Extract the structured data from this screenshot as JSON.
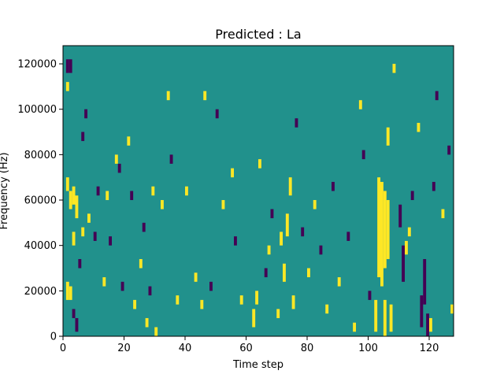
{
  "chart_data": {
    "type": "heatmap",
    "title": "Predicted : La",
    "xlabel": "Time step",
    "ylabel": "Frequency (Hz)",
    "xlim": [
      0,
      128
    ],
    "ylim": [
      0,
      128000
    ],
    "x_ticks": [
      0,
      20,
      40,
      60,
      80,
      100,
      120
    ],
    "y_ticks": [
      0,
      20000,
      40000,
      60000,
      80000,
      100000,
      120000
    ],
    "x_tick_labels": [
      "0",
      "20",
      "40",
      "60",
      "80",
      "100",
      "120"
    ],
    "y_tick_labels": [
      "0",
      "20000",
      "40000",
      "60000",
      "80000",
      "100000",
      "120000"
    ],
    "grid": false,
    "colormap": "viridis",
    "levels": [
      -1,
      0,
      1
    ],
    "level_colors": {
      "-1": "#440154",
      "0": "#21918c",
      "1": "#fde725"
    },
    "background_level": 0,
    "n_time_steps": 128,
    "n_freq_bins": 128,
    "cells": [
      {
        "t": 1,
        "f0": 116000,
        "f1": 122000,
        "v": -1
      },
      {
        "t": 2,
        "f0": 116000,
        "f1": 122000,
        "v": -1
      },
      {
        "t": 1,
        "f0": 108000,
        "f1": 112000,
        "v": 1
      },
      {
        "t": 1,
        "f0": 64000,
        "f1": 70000,
        "v": 1
      },
      {
        "t": 2,
        "f0": 56000,
        "f1": 64000,
        "v": 1
      },
      {
        "t": 3,
        "f0": 58000,
        "f1": 66000,
        "v": 1
      },
      {
        "t": 4,
        "f0": 52000,
        "f1": 62000,
        "v": 1
      },
      {
        "t": 3,
        "f0": 40000,
        "f1": 46000,
        "v": 1
      },
      {
        "t": 1,
        "f0": 16000,
        "f1": 24000,
        "v": 1
      },
      {
        "t": 2,
        "f0": 16000,
        "f1": 22000,
        "v": 1
      },
      {
        "t": 3,
        "f0": 8000,
        "f1": 12000,
        "v": -1
      },
      {
        "t": 4,
        "f0": 2000,
        "f1": 8000,
        "v": -1
      },
      {
        "t": 5,
        "f0": 30000,
        "f1": 34000,
        "v": -1
      },
      {
        "t": 6,
        "f0": 44000,
        "f1": 48000,
        "v": 1
      },
      {
        "t": 6,
        "f0": 86000,
        "f1": 90000,
        "v": -1
      },
      {
        "t": 7,
        "f0": 96000,
        "f1": 100000,
        "v": -1
      },
      {
        "t": 8,
        "f0": 50000,
        "f1": 54000,
        "v": 1
      },
      {
        "t": 10,
        "f0": 42000,
        "f1": 46000,
        "v": -1
      },
      {
        "t": 11,
        "f0": 62000,
        "f1": 66000,
        "v": -1
      },
      {
        "t": 13,
        "f0": 22000,
        "f1": 26000,
        "v": 1
      },
      {
        "t": 14,
        "f0": 60000,
        "f1": 64000,
        "v": 1
      },
      {
        "t": 15,
        "f0": 40000,
        "f1": 44000,
        "v": -1
      },
      {
        "t": 17,
        "f0": 76000,
        "f1": 80000,
        "v": 1
      },
      {
        "t": 18,
        "f0": 72000,
        "f1": 76000,
        "v": -1
      },
      {
        "t": 19,
        "f0": 20000,
        "f1": 24000,
        "v": -1
      },
      {
        "t": 21,
        "f0": 84000,
        "f1": 88000,
        "v": 1
      },
      {
        "t": 22,
        "f0": 60000,
        "f1": 64000,
        "v": -1
      },
      {
        "t": 23,
        "f0": 12000,
        "f1": 16000,
        "v": 1
      },
      {
        "t": 25,
        "f0": 30000,
        "f1": 34000,
        "v": 1
      },
      {
        "t": 26,
        "f0": 46000,
        "f1": 50000,
        "v": -1
      },
      {
        "t": 27,
        "f0": 4000,
        "f1": 8000,
        "v": 1
      },
      {
        "t": 28,
        "f0": 18000,
        "f1": 22000,
        "v": -1
      },
      {
        "t": 29,
        "f0": 62000,
        "f1": 66000,
        "v": 1
      },
      {
        "t": 30,
        "f0": 0,
        "f1": 4000,
        "v": 1
      },
      {
        "t": 32,
        "f0": 56000,
        "f1": 60000,
        "v": 1
      },
      {
        "t": 34,
        "f0": 104000,
        "f1": 108000,
        "v": 1
      },
      {
        "t": 35,
        "f0": 76000,
        "f1": 80000,
        "v": -1
      },
      {
        "t": 37,
        "f0": 14000,
        "f1": 18000,
        "v": 1
      },
      {
        "t": 40,
        "f0": 62000,
        "f1": 66000,
        "v": 1
      },
      {
        "t": 43,
        "f0": 24000,
        "f1": 28000,
        "v": 1
      },
      {
        "t": 45,
        "f0": 12000,
        "f1": 16000,
        "v": 1
      },
      {
        "t": 46,
        "f0": 104000,
        "f1": 108000,
        "v": 1
      },
      {
        "t": 48,
        "f0": 20000,
        "f1": 24000,
        "v": -1
      },
      {
        "t": 50,
        "f0": 96000,
        "f1": 100000,
        "v": -1
      },
      {
        "t": 52,
        "f0": 56000,
        "f1": 60000,
        "v": 1
      },
      {
        "t": 55,
        "f0": 70000,
        "f1": 74000,
        "v": 1
      },
      {
        "t": 56,
        "f0": 40000,
        "f1": 44000,
        "v": -1
      },
      {
        "t": 58,
        "f0": 14000,
        "f1": 18000,
        "v": 1
      },
      {
        "t": 62,
        "f0": 4000,
        "f1": 12000,
        "v": 1
      },
      {
        "t": 63,
        "f0": 14000,
        "f1": 20000,
        "v": 1
      },
      {
        "t": 64,
        "f0": 74000,
        "f1": 78000,
        "v": 1
      },
      {
        "t": 66,
        "f0": 26000,
        "f1": 30000,
        "v": -1
      },
      {
        "t": 67,
        "f0": 36000,
        "f1": 40000,
        "v": 1
      },
      {
        "t": 68,
        "f0": 52000,
        "f1": 56000,
        "v": -1
      },
      {
        "t": 70,
        "f0": 8000,
        "f1": 12000,
        "v": 1
      },
      {
        "t": 71,
        "f0": 40000,
        "f1": 46000,
        "v": 1
      },
      {
        "t": 72,
        "f0": 24000,
        "f1": 32000,
        "v": 1
      },
      {
        "t": 73,
        "f0": 44000,
        "f1": 54000,
        "v": 1
      },
      {
        "t": 74,
        "f0": 62000,
        "f1": 70000,
        "v": 1
      },
      {
        "t": 75,
        "f0": 12000,
        "f1": 18000,
        "v": 1
      },
      {
        "t": 76,
        "f0": 92000,
        "f1": 96000,
        "v": -1
      },
      {
        "t": 78,
        "f0": 44000,
        "f1": 48000,
        "v": -1
      },
      {
        "t": 80,
        "f0": 26000,
        "f1": 30000,
        "v": 1
      },
      {
        "t": 82,
        "f0": 56000,
        "f1": 60000,
        "v": 1
      },
      {
        "t": 84,
        "f0": 36000,
        "f1": 40000,
        "v": -1
      },
      {
        "t": 86,
        "f0": 10000,
        "f1": 14000,
        "v": 1
      },
      {
        "t": 88,
        "f0": 64000,
        "f1": 68000,
        "v": -1
      },
      {
        "t": 90,
        "f0": 22000,
        "f1": 26000,
        "v": 1
      },
      {
        "t": 93,
        "f0": 42000,
        "f1": 46000,
        "v": -1
      },
      {
        "t": 95,
        "f0": 2000,
        "f1": 6000,
        "v": 1
      },
      {
        "t": 97,
        "f0": 100000,
        "f1": 104000,
        "v": 1
      },
      {
        "t": 98,
        "f0": 78000,
        "f1": 82000,
        "v": -1
      },
      {
        "t": 100,
        "f0": 16000,
        "f1": 20000,
        "v": -1
      },
      {
        "t": 102,
        "f0": 2000,
        "f1": 16000,
        "v": 1
      },
      {
        "t": 103,
        "f0": 26000,
        "f1": 70000,
        "v": 1
      },
      {
        "t": 104,
        "f0": 22000,
        "f1": 68000,
        "v": 1
      },
      {
        "t": 105,
        "f0": 0,
        "f1": 16000,
        "v": 1
      },
      {
        "t": 105,
        "f0": 30000,
        "f1": 64000,
        "v": 1
      },
      {
        "t": 106,
        "f0": 34000,
        "f1": 60000,
        "v": 1
      },
      {
        "t": 107,
        "f0": 2000,
        "f1": 14000,
        "v": 1
      },
      {
        "t": 106,
        "f0": 84000,
        "f1": 92000,
        "v": 1
      },
      {
        "t": 108,
        "f0": 116000,
        "f1": 120000,
        "v": 1
      },
      {
        "t": 110,
        "f0": 48000,
        "f1": 58000,
        "v": -1
      },
      {
        "t": 111,
        "f0": 24000,
        "f1": 40000,
        "v": -1
      },
      {
        "t": 112,
        "f0": 36000,
        "f1": 42000,
        "v": 1
      },
      {
        "t": 113,
        "f0": 44000,
        "f1": 48000,
        "v": 1
      },
      {
        "t": 114,
        "f0": 60000,
        "f1": 64000,
        "v": -1
      },
      {
        "t": 116,
        "f0": 90000,
        "f1": 94000,
        "v": 1
      },
      {
        "t": 117,
        "f0": 4000,
        "f1": 18000,
        "v": -1
      },
      {
        "t": 118,
        "f0": 14000,
        "f1": 34000,
        "v": -1
      },
      {
        "t": 119,
        "f0": 0,
        "f1": 10000,
        "v": -1
      },
      {
        "t": 120,
        "f0": 2000,
        "f1": 8000,
        "v": 1
      },
      {
        "t": 121,
        "f0": 64000,
        "f1": 68000,
        "v": -1
      },
      {
        "t": 122,
        "f0": 104000,
        "f1": 108000,
        "v": -1
      },
      {
        "t": 124,
        "f0": 52000,
        "f1": 56000,
        "v": 1
      },
      {
        "t": 126,
        "f0": 80000,
        "f1": 84000,
        "v": -1
      },
      {
        "t": 127,
        "f0": 10000,
        "f1": 14000,
        "v": 1
      }
    ]
  }
}
